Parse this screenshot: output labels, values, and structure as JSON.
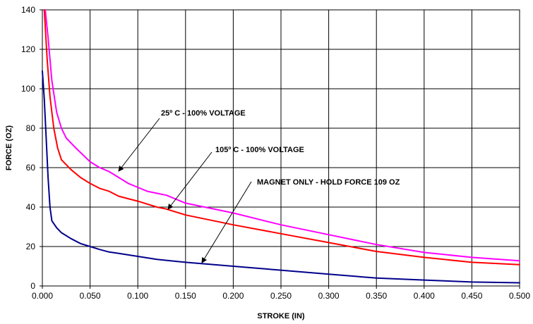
{
  "chart_data": {
    "type": "line",
    "title": "",
    "xlabel": "STROKE (IN)",
    "ylabel": "FORCE (OZ)",
    "xlim": [
      0,
      0.5
    ],
    "ylim": [
      0,
      140
    ],
    "x_ticks": [
      "0.000",
      "0.050",
      "0.100",
      "0.150",
      "0.200",
      "0.250",
      "0.300",
      "0.350",
      "0.400",
      "0.450",
      "0.500"
    ],
    "y_ticks": [
      "0",
      "20",
      "40",
      "60",
      "80",
      "100",
      "120",
      "140"
    ],
    "grid": true,
    "legend": "none",
    "series": [
      {
        "color": "#ff00ff",
        "points": [
          [
            0.003,
            140
          ],
          [
            0.006,
            126
          ],
          [
            0.01,
            104
          ],
          [
            0.015,
            88
          ],
          [
            0.02,
            80
          ],
          [
            0.025,
            75
          ],
          [
            0.035,
            70
          ],
          [
            0.05,
            63
          ],
          [
            0.06,
            60
          ],
          [
            0.07,
            58
          ],
          [
            0.08,
            55
          ],
          [
            0.09,
            52
          ],
          [
            0.1,
            50
          ],
          [
            0.11,
            48
          ],
          [
            0.12,
            47
          ],
          [
            0.13,
            46
          ],
          [
            0.14,
            44
          ],
          [
            0.15,
            42
          ],
          [
            0.17,
            40
          ],
          [
            0.2,
            37
          ],
          [
            0.25,
            31
          ],
          [
            0.3,
            26
          ],
          [
            0.35,
            21
          ],
          [
            0.4,
            17
          ],
          [
            0.45,
            14.5
          ],
          [
            0.5,
            12.8
          ]
        ]
      },
      {
        "color": "#ff0000",
        "points": [
          [
            0.002,
            140
          ],
          [
            0.005,
            115
          ],
          [
            0.008,
            96
          ],
          [
            0.012,
            80
          ],
          [
            0.016,
            70
          ],
          [
            0.02,
            64
          ],
          [
            0.03,
            59
          ],
          [
            0.04,
            55
          ],
          [
            0.05,
            52
          ],
          [
            0.06,
            49.5
          ],
          [
            0.07,
            48
          ],
          [
            0.08,
            45.5
          ],
          [
            0.1,
            43
          ],
          [
            0.12,
            40
          ],
          [
            0.13,
            39
          ],
          [
            0.15,
            36
          ],
          [
            0.2,
            31
          ],
          [
            0.25,
            26.5
          ],
          [
            0.3,
            22
          ],
          [
            0.35,
            17.5
          ],
          [
            0.4,
            14.5
          ],
          [
            0.45,
            12
          ],
          [
            0.5,
            10.8
          ]
        ]
      },
      {
        "color": "#00008b",
        "points": [
          [
            0,
            109
          ],
          [
            0.002,
            95
          ],
          [
            0.004,
            75
          ],
          [
            0.006,
            55
          ],
          [
            0.008,
            40
          ],
          [
            0.01,
            33
          ],
          [
            0.015,
            29.5
          ],
          [
            0.02,
            27
          ],
          [
            0.03,
            24
          ],
          [
            0.04,
            21.5
          ],
          [
            0.05,
            20
          ],
          [
            0.06,
            18.5
          ],
          [
            0.07,
            17.2
          ],
          [
            0.08,
            16.5
          ],
          [
            0.1,
            15
          ],
          [
            0.12,
            13.5
          ],
          [
            0.15,
            12
          ],
          [
            0.2,
            10
          ],
          [
            0.25,
            8
          ],
          [
            0.3,
            6
          ],
          [
            0.35,
            4
          ],
          [
            0.4,
            3
          ],
          [
            0.45,
            2
          ],
          [
            0.5,
            1.6
          ]
        ]
      }
    ],
    "annotations": [
      {
        "text": "25º C - 100% VOLTAGE",
        "arrow_to": [
          0.078,
          58
        ]
      },
      {
        "text": "105º C - 100% VOLTAGE",
        "arrow_to": [
          0.13,
          39
        ]
      },
      {
        "text": "MAGNET ONLY - HOLD FORCE 109 OZ",
        "arrow_to": [
          0.165,
          11.5
        ]
      }
    ]
  }
}
